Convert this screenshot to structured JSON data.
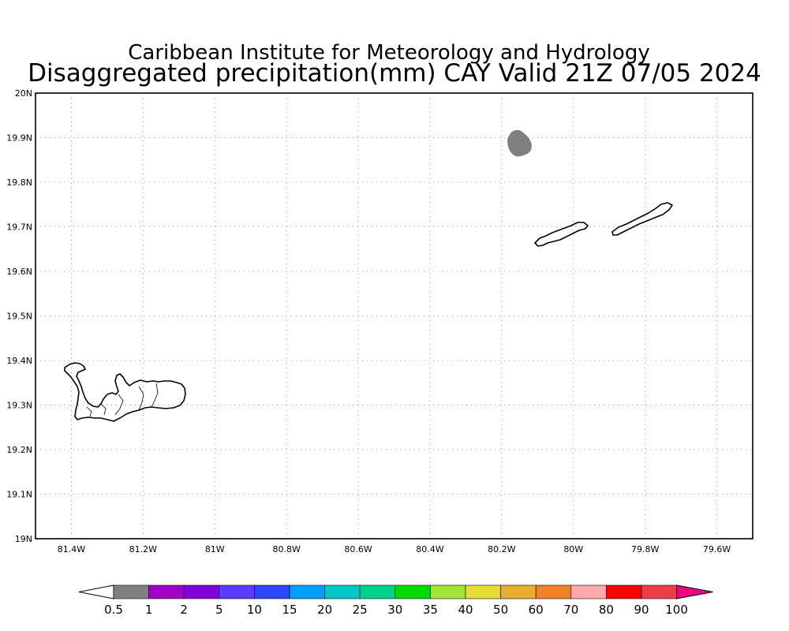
{
  "header": {
    "title_line1": "Caribbean Institute for Meteorology and Hydrology",
    "title_line2": "Disaggregated precipitation(mm) CAY Valid 21Z 07/05 2024"
  },
  "map": {
    "lon_range": [
      -81.5,
      -79.5
    ],
    "lat_range": [
      19.0,
      20.0
    ],
    "lon_ticks": [
      {
        "value": -81.4,
        "label": "81.4W"
      },
      {
        "value": -81.2,
        "label": "81.2W"
      },
      {
        "value": -81.0,
        "label": "81W"
      },
      {
        "value": -80.8,
        "label": "80.8W"
      },
      {
        "value": -80.6,
        "label": "80.6W"
      },
      {
        "value": -80.4,
        "label": "80.4W"
      },
      {
        "value": -80.2,
        "label": "80.2W"
      },
      {
        "value": -80.0,
        "label": "80W"
      },
      {
        "value": -79.8,
        "label": "79.8W"
      },
      {
        "value": -79.6,
        "label": "79.6W"
      }
    ],
    "lat_ticks": [
      {
        "value": 20.0,
        "label": "20N"
      },
      {
        "value": 19.9,
        "label": "19.9N"
      },
      {
        "value": 19.8,
        "label": "19.8N"
      },
      {
        "value": 19.7,
        "label": "19.7N"
      },
      {
        "value": 19.6,
        "label": "19.6N"
      },
      {
        "value": 19.5,
        "label": "19.5N"
      },
      {
        "value": 19.4,
        "label": "19.4N"
      },
      {
        "value": 19.3,
        "label": "19.3N"
      },
      {
        "value": 19.2,
        "label": "19.2N"
      },
      {
        "value": 19.1,
        "label": "19.1N"
      },
      {
        "value": 19.0,
        "label": "19N"
      }
    ],
    "grid": true,
    "precip_features": [
      {
        "description": "0.5-1 mm precipitation blob",
        "center_lon": -80.156,
        "center_lat": 19.886,
        "color": "#808080"
      }
    ]
  },
  "colorbar": {
    "labels": [
      "0.5",
      "1",
      "2",
      "5",
      "10",
      "15",
      "20",
      "25",
      "30",
      "35",
      "40",
      "50",
      "60",
      "70",
      "80",
      "90",
      "100"
    ],
    "colors": [
      "#808080",
      "#a000c8",
      "#8200dc",
      "#5a3cff",
      "#2d46ff",
      "#00a0ff",
      "#00c8c8",
      "#00d28c",
      "#00dc00",
      "#a0e632",
      "#e6dc32",
      "#e6af2d",
      "#f08228",
      "#ffaaaa",
      "#ff0000",
      "#f03c46",
      "#f00082"
    ],
    "below_color": "#ffffff",
    "above_color": "#f00082"
  }
}
